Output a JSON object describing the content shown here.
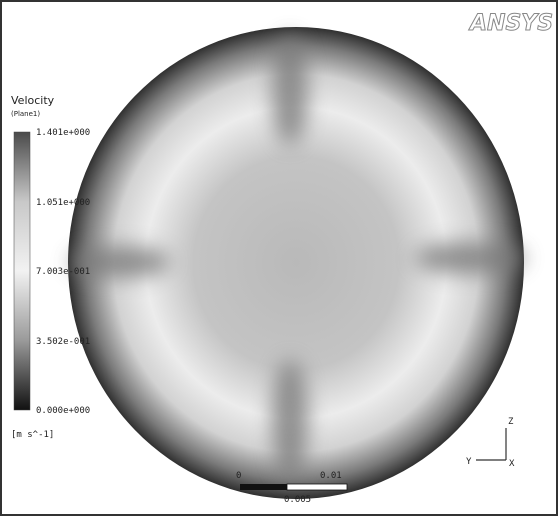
{
  "logo": "ANSYS",
  "legend": {
    "title": "Velocity",
    "subtitle": "(Plane1)",
    "ticks": [
      "1.401e+000",
      "1.051e+000",
      "7.003e-001",
      "3.502e-001",
      "0.000e+000"
    ],
    "units": "[m s^-1]"
  },
  "scale_bar": {
    "start": "0",
    "end": "0.01",
    "middle": "0.005"
  },
  "triad": {
    "z": "Z",
    "y": "Y",
    "x": "X"
  }
}
